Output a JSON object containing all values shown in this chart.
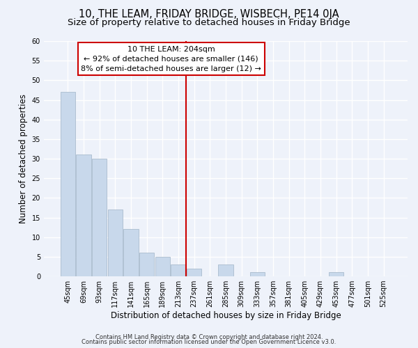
{
  "title": "10, THE LEAM, FRIDAY BRIDGE, WISBECH, PE14 0JA",
  "subtitle": "Size of property relative to detached houses in Friday Bridge",
  "xlabel": "Distribution of detached houses by size in Friday Bridge",
  "ylabel": "Number of detached properties",
  "bar_color": "#c8d8eb",
  "bar_edge_color": "#aabcce",
  "categories": [
    "45sqm",
    "69sqm",
    "93sqm",
    "117sqm",
    "141sqm",
    "165sqm",
    "189sqm",
    "213sqm",
    "237sqm",
    "261sqm",
    "285sqm",
    "309sqm",
    "333sqm",
    "357sqm",
    "381sqm",
    "405sqm",
    "429sqm",
    "453sqm",
    "477sqm",
    "501sqm",
    "525sqm"
  ],
  "values": [
    47,
    31,
    30,
    17,
    12,
    6,
    5,
    3,
    2,
    0,
    3,
    0,
    1,
    0,
    0,
    0,
    0,
    1,
    0,
    0,
    0
  ],
  "ylim": [
    0,
    60
  ],
  "yticks": [
    0,
    5,
    10,
    15,
    20,
    25,
    30,
    35,
    40,
    45,
    50,
    55,
    60
  ],
  "vline_x": 7.5,
  "vline_color": "#cc0000",
  "annotation_title": "10 THE LEAM: 204sqm",
  "annotation_line1": "← 92% of detached houses are smaller (146)",
  "annotation_line2": "8% of semi-detached houses are larger (12) →",
  "footnote1": "Contains HM Land Registry data © Crown copyright and database right 2024.",
  "footnote2": "Contains public sector information licensed under the Open Government Licence v3.0.",
  "background_color": "#eef2fa",
  "grid_color": "#ffffff",
  "title_fontsize": 10.5,
  "subtitle_fontsize": 9.5,
  "tick_fontsize": 7,
  "ylabel_fontsize": 8.5,
  "xlabel_fontsize": 8.5,
  "annotation_fontsize": 8,
  "footnote_fontsize": 6
}
